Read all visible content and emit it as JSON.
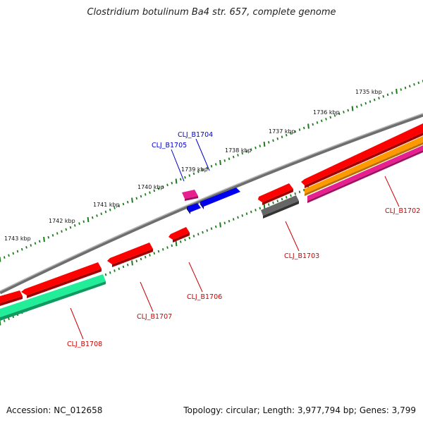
{
  "title": "Clostridium botulinum Ba4 str. 657, complete genome",
  "accession": "Accession: NC_012658",
  "summary": "Topology: circular; Length: 3,977,794 bp; Genes: 3,799",
  "colors": {
    "backbone": "#808080",
    "cds_red": "#ff0000",
    "cds_blue": "#0000ee",
    "cds_pink": "#e8208f",
    "cds_orange": "#ff9900",
    "cds_green": "#22ee99",
    "cds_gray": "#666666",
    "tick_green": "#1f7a1f",
    "label_red": "#cc0000",
    "label_blue": "#0000cc"
  },
  "ruler_labels": [
    "1735 kbp",
    "1736 kbp",
    "1737 kbp",
    "1738 kbp",
    "1739 kbp",
    "1740 kbp",
    "1741 kbp",
    "1742 kbp",
    "1743 kbp"
  ],
  "gene_labels": [
    "CLJ_B1702",
    "CLJ_B1703",
    "CLJ_B1704",
    "CLJ_B1705",
    "CLJ_B1706",
    "CLJ_B1707",
    "CLJ_B1708"
  ]
}
